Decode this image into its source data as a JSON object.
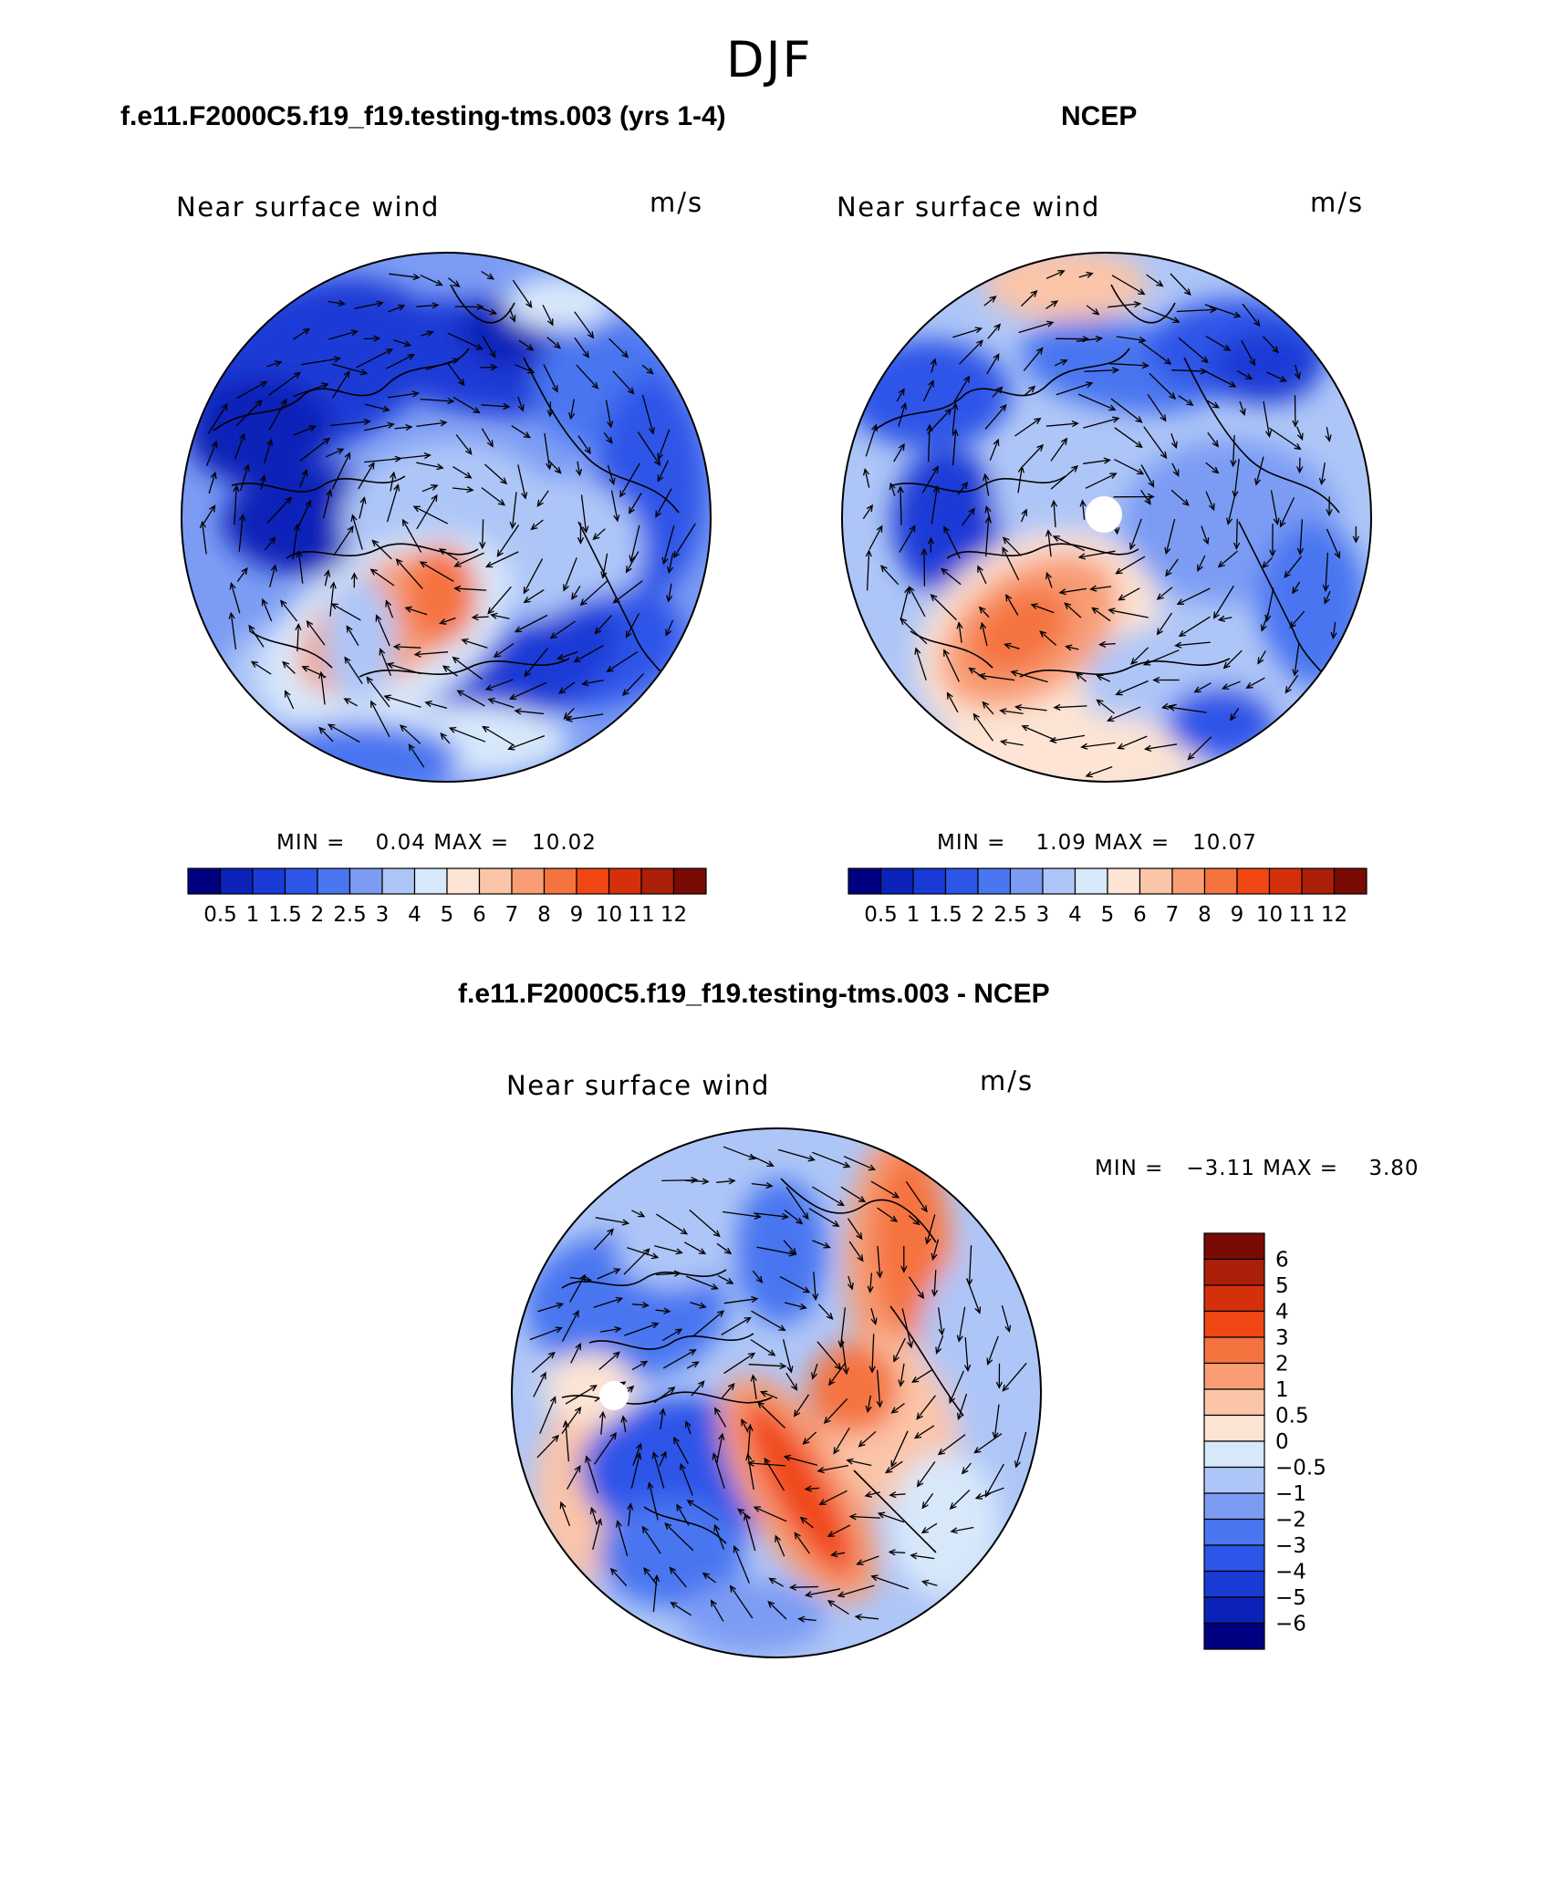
{
  "figure": {
    "season": "DJF",
    "panel_a_title": "f.e11.F2000C5.f19_f19.testing-tms.003 (yrs 1-4)",
    "panel_b_title": "NCEP",
    "panel_c_title": "f.e11.F2000C5.f19_f19.testing-tms.003 - NCEP"
  },
  "chart_data": [
    {
      "type": "heatmap",
      "id": "model",
      "title": "f.e11.F2000C5.f19_f19.testing-tms.003 (yrs 1-4)",
      "variable": "Near surface wind",
      "units": "m/s",
      "projection": "north polar stereographic",
      "min_label": "MIN =",
      "max_label": "MAX =",
      "min": "0.04",
      "max": "10.02",
      "levels": [
        "0.5",
        "1",
        "1.5",
        "2",
        "2.5",
        "3",
        "4",
        "5",
        "6",
        "7",
        "8",
        "9",
        "10",
        "11",
        "12"
      ],
      "colors": [
        "#000080",
        "#0b22b8",
        "#1a3ad6",
        "#2d55e8",
        "#4a76f0",
        "#7c9cf4",
        "#aec6f7",
        "#d8e8fb",
        "#fde4d4",
        "#fbc5a8",
        "#f89d74",
        "#f5733f",
        "#f04714",
        "#d5300c",
        "#ac1f08",
        "#7a0a04"
      ]
    },
    {
      "type": "heatmap",
      "id": "ncep",
      "title": "NCEP",
      "variable": "Near surface wind",
      "units": "m/s",
      "projection": "north polar stereographic",
      "min_label": "MIN =",
      "max_label": "MAX =",
      "min": "1.09",
      "max": "10.07",
      "levels": [
        "0.5",
        "1",
        "1.5",
        "2",
        "2.5",
        "3",
        "4",
        "5",
        "6",
        "7",
        "8",
        "9",
        "10",
        "11",
        "12"
      ],
      "colors": [
        "#000080",
        "#0b22b8",
        "#1a3ad6",
        "#2d55e8",
        "#4a76f0",
        "#7c9cf4",
        "#aec6f7",
        "#d8e8fb",
        "#fde4d4",
        "#fbc5a8",
        "#f89d74",
        "#f5733f",
        "#f04714",
        "#d5300c",
        "#ac1f08",
        "#7a0a04"
      ]
    },
    {
      "type": "heatmap",
      "id": "diff",
      "title": "f.e11.F2000C5.f19_f19.testing-tms.003 - NCEP",
      "variable": "Near surface wind",
      "units": "m/s",
      "projection": "north polar stereographic",
      "min_label": "MIN =",
      "max_label": "MAX =",
      "min": "−3.11",
      "max": "3.80",
      "levels": [
        "6",
        "5",
        "4",
        "3",
        "2",
        "1",
        "0.5",
        "0",
        "−0.5",
        "−1",
        "−2",
        "−3",
        "−4",
        "−5",
        "−6"
      ],
      "colors": [
        "#7a0a04",
        "#ac1f08",
        "#d5300c",
        "#f04714",
        "#f5733f",
        "#f89d74",
        "#fbc5a8",
        "#fde4d4",
        "#d8e8fb",
        "#aec6f7",
        "#7c9cf4",
        "#4a76f0",
        "#2d55e8",
        "#1a3ad6",
        "#0b22b8",
        "#000080"
      ]
    }
  ]
}
